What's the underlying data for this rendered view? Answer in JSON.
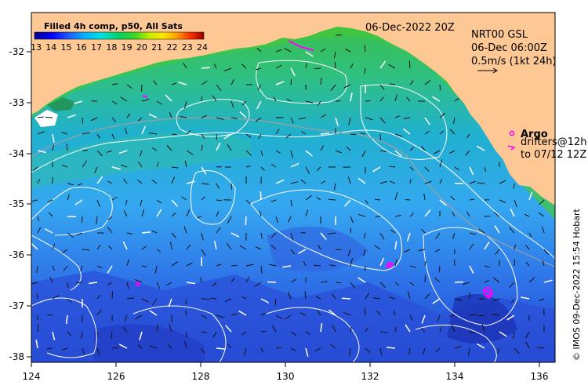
{
  "colorbar": {
    "title": "Filled 4h comp, p50, All Sats",
    "ticks": [
      "13",
      "14",
      "15",
      "16",
      "17",
      "18",
      "19",
      "20",
      "21",
      "22",
      "23",
      "24"
    ]
  },
  "header": {
    "date": "06-Dec-2022 20Z"
  },
  "legend": {
    "product": "NRT00 GSL",
    "time": "06-Dec 06:00Z",
    "scale": "0.5m/s (1kt 24h)"
  },
  "argo": {
    "label": "Argo",
    "drifters": "drifters@12h",
    "range": "to 07/12 12Z"
  },
  "credit": "© IMOS 09-Dec-2022 15:54 Hobart",
  "axes": {
    "x_ticks": [
      "124",
      "126",
      "128",
      "130",
      "132",
      "134",
      "136"
    ],
    "y_ticks": [
      "-32",
      "-33",
      "-34",
      "-35",
      "-36",
      "-37",
      "-38"
    ]
  },
  "colors": {
    "land": "#fdc894",
    "open_ocean": "#43b2f0",
    "cool_water": "#2b4fd8",
    "warm_water": "#3cc040",
    "argo_marker": "#ff00ff"
  }
}
